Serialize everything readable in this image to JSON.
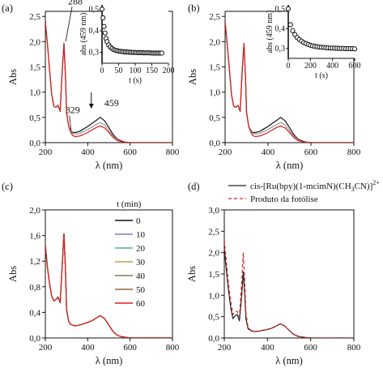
{
  "chart_data": [
    {
      "panel": "(a)",
      "type": "line",
      "xlabel": "λ (nm)",
      "ylabel": "Abs",
      "xlim": [
        200,
        800
      ],
      "ylim": [
        0,
        2.6
      ],
      "xticks": [
        "200",
        "400",
        "600",
        "800"
      ],
      "yticks": [
        "0,0",
        "0,5",
        "1,0",
        "1,5",
        "2,0",
        "2,5"
      ],
      "annotations": [
        "288",
        "329",
        "459"
      ],
      "annotation_x": [
        288,
        329,
        459
      ],
      "arrow_at_x": 459,
      "grid": false,
      "x": [
        200,
        210,
        220,
        230,
        240,
        250,
        260,
        270,
        280,
        288,
        295,
        300,
        310,
        320,
        329,
        340,
        360,
        380,
        400,
        420,
        440,
        459,
        480,
        500,
        520,
        540,
        560,
        580,
        600,
        650,
        700,
        800
      ],
      "series": [
        {
          "name": "",
          "color": "#111111",
          "values": [
            2.4,
            1.95,
            1.45,
            0.95,
            0.72,
            0.7,
            0.74,
            0.62,
            1.45,
            1.97,
            1.3,
            0.6,
            0.33,
            0.24,
            0.2,
            0.2,
            0.22,
            0.27,
            0.32,
            0.38,
            0.44,
            0.5,
            0.43,
            0.3,
            0.16,
            0.07,
            0.03,
            0.01,
            0.0,
            0.0,
            0.0,
            0.0
          ]
        },
        {
          "name": "",
          "color": "#999999",
          "values": [
            2.4,
            1.95,
            1.45,
            0.95,
            0.72,
            0.7,
            0.74,
            0.62,
            1.45,
            1.96,
            1.3,
            0.6,
            0.33,
            0.23,
            0.18,
            0.17,
            0.18,
            0.22,
            0.26,
            0.31,
            0.36,
            0.4,
            0.35,
            0.24,
            0.13,
            0.06,
            0.02,
            0.01,
            0.0,
            0.0,
            0.0,
            0.0
          ]
        },
        {
          "name": "",
          "color": "#dd1c1c",
          "values": [
            2.4,
            1.95,
            1.45,
            0.95,
            0.72,
            0.7,
            0.74,
            0.62,
            1.45,
            1.95,
            1.3,
            0.6,
            0.32,
            0.2,
            0.14,
            0.12,
            0.13,
            0.16,
            0.2,
            0.25,
            0.3,
            0.33,
            0.29,
            0.2,
            0.1,
            0.04,
            0.02,
            0.01,
            0.0,
            0.0,
            0.0,
            0.0
          ]
        }
      ],
      "inset": {
        "type": "scatter",
        "xlabel": "t (s)",
        "ylabel": "abs (459 nm)",
        "xlim": [
          0,
          200
        ],
        "ylim": [
          0.25,
          0.52
        ],
        "xticks": [
          "0",
          "50",
          "100",
          "150",
          "200"
        ],
        "yticks": [
          "0,3",
          "0,4",
          "0,5"
        ],
        "x": [
          0,
          3,
          6,
          9,
          12,
          15,
          20,
          25,
          30,
          35,
          40,
          45,
          50,
          55,
          60,
          65,
          70,
          75,
          80,
          85,
          90,
          95,
          100,
          105,
          110,
          115,
          120,
          125,
          130,
          135,
          140,
          145,
          150,
          155,
          160,
          165,
          170,
          175,
          180
        ],
        "y": [
          0.5,
          0.46,
          0.42,
          0.39,
          0.365,
          0.35,
          0.335,
          0.325,
          0.318,
          0.313,
          0.31,
          0.308,
          0.306,
          0.305,
          0.304,
          0.303,
          0.302,
          0.302,
          0.301,
          0.301,
          0.3,
          0.3,
          0.3,
          0.299,
          0.299,
          0.299,
          0.299,
          0.298,
          0.298,
          0.298,
          0.298,
          0.298,
          0.297,
          0.297,
          0.297,
          0.297,
          0.297,
          0.297,
          0.297
        ]
      }
    },
    {
      "panel": "(b)",
      "type": "line",
      "xlabel": "λ (nm)",
      "ylabel": "Abs",
      "xlim": [
        200,
        800
      ],
      "ylim": [
        0,
        2.6
      ],
      "xticks": [
        "200",
        "400",
        "600",
        "800"
      ],
      "yticks": [
        "0,0",
        "0,5",
        "1,0",
        "1,5",
        "2,0",
        "2,5"
      ],
      "grid": false,
      "x": [
        200,
        210,
        220,
        230,
        240,
        250,
        260,
        270,
        280,
        288,
        295,
        300,
        310,
        320,
        329,
        340,
        360,
        380,
        400,
        420,
        440,
        459,
        480,
        500,
        520,
        540,
        560,
        580,
        600,
        650,
        700,
        800
      ],
      "series": [
        {
          "name": "",
          "color": "#111111",
          "values": [
            2.4,
            1.95,
            1.45,
            0.95,
            0.72,
            0.7,
            0.74,
            0.62,
            1.45,
            1.97,
            1.3,
            0.6,
            0.33,
            0.24,
            0.2,
            0.2,
            0.22,
            0.27,
            0.32,
            0.38,
            0.44,
            0.5,
            0.43,
            0.3,
            0.16,
            0.07,
            0.03,
            0.01,
            0.0,
            0.0,
            0.0,
            0.0
          ]
        },
        {
          "name": "",
          "color": "#999999",
          "values": [
            2.4,
            1.95,
            1.45,
            0.95,
            0.72,
            0.7,
            0.74,
            0.62,
            1.45,
            1.96,
            1.3,
            0.6,
            0.33,
            0.23,
            0.18,
            0.17,
            0.18,
            0.22,
            0.26,
            0.31,
            0.36,
            0.4,
            0.35,
            0.24,
            0.13,
            0.06,
            0.02,
            0.01,
            0.0,
            0.0,
            0.0,
            0.0
          ]
        },
        {
          "name": "",
          "color": "#dd1c1c",
          "values": [
            2.4,
            1.95,
            1.45,
            0.95,
            0.72,
            0.7,
            0.74,
            0.62,
            1.45,
            1.95,
            1.3,
            0.6,
            0.32,
            0.2,
            0.14,
            0.12,
            0.13,
            0.16,
            0.2,
            0.25,
            0.3,
            0.33,
            0.29,
            0.2,
            0.1,
            0.04,
            0.02,
            0.01,
            0.0,
            0.0,
            0.0,
            0.0
          ]
        }
      ],
      "inset": {
        "type": "scatter",
        "xlabel": "t (s)",
        "ylabel": "abs (459 nm)",
        "xlim": [
          0,
          600
        ],
        "ylim": [
          0.25,
          0.52
        ],
        "xticks": [
          "0",
          "200",
          "400",
          "600"
        ],
        "yticks": [
          "0,3",
          "0,4",
          "0,5"
        ],
        "x": [
          0,
          20,
          40,
          60,
          80,
          100,
          120,
          140,
          160,
          180,
          200,
          220,
          240,
          260,
          280,
          300,
          320,
          340,
          360,
          380,
          400,
          420,
          440,
          460,
          480,
          500,
          520,
          540,
          560,
          580,
          600
        ],
        "y": [
          0.5,
          0.42,
          0.39,
          0.37,
          0.355,
          0.345,
          0.337,
          0.33,
          0.325,
          0.32,
          0.316,
          0.313,
          0.311,
          0.309,
          0.307,
          0.306,
          0.305,
          0.304,
          0.303,
          0.302,
          0.302,
          0.301,
          0.301,
          0.3,
          0.3,
          0.3,
          0.299,
          0.299,
          0.299,
          0.299,
          0.298
        ]
      }
    },
    {
      "panel": "(c)",
      "type": "line",
      "xlabel": "λ (nm)",
      "ylabel": "Abs",
      "xlim": [
        200,
        800
      ],
      "ylim": [
        0,
        2.0
      ],
      "xticks": [
        "200",
        "400",
        "600",
        "800"
      ],
      "yticks": [
        "0,0",
        "0,4",
        "0,8",
        "1,2",
        "1,6",
        "2,0"
      ],
      "legend_title": "t (min)",
      "legend_position": "right",
      "grid": false,
      "x": [
        200,
        210,
        220,
        230,
        240,
        250,
        260,
        270,
        280,
        288,
        295,
        300,
        310,
        320,
        330,
        340,
        360,
        380,
        400,
        420,
        440,
        459,
        480,
        500,
        520,
        540,
        560,
        580,
        600,
        650,
        700,
        800
      ],
      "series": [
        {
          "name": "0",
          "color": "#111111",
          "values": [
            1.45,
            1.1,
            0.85,
            0.65,
            0.58,
            0.6,
            0.64,
            0.55,
            1.15,
            1.63,
            1.05,
            0.45,
            0.26,
            0.21,
            0.2,
            0.19,
            0.2,
            0.22,
            0.24,
            0.27,
            0.31,
            0.35,
            0.3,
            0.2,
            0.1,
            0.04,
            0.02,
            0.01,
            0.0,
            0.0,
            0.0,
            0.0
          ]
        },
        {
          "name": "10",
          "color": "#7b7fd1",
          "values": [
            1.45,
            1.1,
            0.85,
            0.65,
            0.58,
            0.6,
            0.64,
            0.55,
            1.15,
            1.63,
            1.05,
            0.45,
            0.26,
            0.21,
            0.2,
            0.19,
            0.2,
            0.22,
            0.24,
            0.27,
            0.31,
            0.35,
            0.3,
            0.2,
            0.1,
            0.04,
            0.02,
            0.01,
            0.0,
            0.0,
            0.0,
            0.0
          ]
        },
        {
          "name": "20",
          "color": "#5aa7a7",
          "values": [
            1.45,
            1.1,
            0.85,
            0.65,
            0.58,
            0.6,
            0.64,
            0.55,
            1.15,
            1.62,
            1.05,
            0.45,
            0.26,
            0.21,
            0.2,
            0.19,
            0.2,
            0.22,
            0.24,
            0.27,
            0.31,
            0.35,
            0.3,
            0.2,
            0.1,
            0.04,
            0.02,
            0.01,
            0.0,
            0.0,
            0.0,
            0.0
          ]
        },
        {
          "name": "30",
          "color": "#b5a357",
          "values": [
            1.45,
            1.1,
            0.85,
            0.65,
            0.58,
            0.6,
            0.64,
            0.55,
            1.15,
            1.62,
            1.05,
            0.45,
            0.26,
            0.21,
            0.2,
            0.19,
            0.2,
            0.22,
            0.24,
            0.27,
            0.31,
            0.35,
            0.3,
            0.2,
            0.1,
            0.04,
            0.02,
            0.01,
            0.0,
            0.0,
            0.0,
            0.0
          ]
        },
        {
          "name": "40",
          "color": "#6a8a4f",
          "values": [
            1.45,
            1.1,
            0.85,
            0.65,
            0.58,
            0.6,
            0.64,
            0.55,
            1.15,
            1.62,
            1.05,
            0.45,
            0.26,
            0.21,
            0.2,
            0.19,
            0.2,
            0.22,
            0.24,
            0.27,
            0.31,
            0.35,
            0.3,
            0.2,
            0.1,
            0.04,
            0.02,
            0.01,
            0.0,
            0.0,
            0.0,
            0.0
          ]
        },
        {
          "name": "50",
          "color": "#8c6a3f",
          "values": [
            1.45,
            1.1,
            0.85,
            0.65,
            0.58,
            0.6,
            0.64,
            0.55,
            1.15,
            1.62,
            1.05,
            0.45,
            0.26,
            0.21,
            0.2,
            0.19,
            0.2,
            0.22,
            0.24,
            0.27,
            0.31,
            0.35,
            0.3,
            0.2,
            0.1,
            0.04,
            0.02,
            0.01,
            0.0,
            0.0,
            0.0,
            0.0
          ]
        },
        {
          "name": "60",
          "color": "#dd1c1c",
          "values": [
            1.45,
            1.1,
            0.85,
            0.65,
            0.58,
            0.6,
            0.64,
            0.55,
            1.15,
            1.62,
            1.05,
            0.45,
            0.26,
            0.21,
            0.2,
            0.19,
            0.2,
            0.22,
            0.24,
            0.27,
            0.31,
            0.35,
            0.3,
            0.2,
            0.1,
            0.04,
            0.02,
            0.01,
            0.0,
            0.0,
            0.0,
            0.0
          ]
        }
      ]
    },
    {
      "panel": "(d)",
      "type": "line",
      "xlabel": "λ (nm)",
      "ylabel": "Abs",
      "xlim": [
        200,
        800
      ],
      "ylim": [
        0,
        3.0
      ],
      "xticks": [
        "200",
        "400",
        "600",
        "800"
      ],
      "yticks": [
        "0,0",
        "0,5",
        "1,0",
        "1,5",
        "2,0",
        "2,5",
        "3,0"
      ],
      "legend_position": "top",
      "grid": false,
      "x": [
        200,
        210,
        220,
        230,
        240,
        250,
        260,
        270,
        280,
        288,
        295,
        300,
        310,
        320,
        330,
        340,
        360,
        380,
        400,
        420,
        440,
        459,
        480,
        500,
        520,
        540,
        560,
        580,
        600,
        650,
        700,
        800
      ],
      "series": [
        {
          "name": "cis-[Ru(bpy)(1-mcimN)(CH3CN)]2+",
          "style": "solid",
          "color": "#222222",
          "values": [
            2.1,
            1.55,
            1.1,
            0.7,
            0.45,
            0.52,
            0.55,
            0.4,
            0.95,
            1.55,
            1.0,
            0.45,
            0.22,
            0.18,
            0.16,
            0.15,
            0.16,
            0.18,
            0.2,
            0.23,
            0.28,
            0.33,
            0.28,
            0.18,
            0.09,
            0.04,
            0.02,
            0.01,
            0.0,
            0.0,
            0.0,
            0.0
          ]
        },
        {
          "name": "Produto da fotólise",
          "style": "dashed",
          "color": "#dd1c1c",
          "values": [
            2.3,
            1.75,
            1.25,
            0.85,
            0.55,
            0.62,
            0.62,
            0.5,
            1.25,
            2.0,
            1.3,
            0.58,
            0.26,
            0.19,
            0.16,
            0.15,
            0.16,
            0.18,
            0.2,
            0.23,
            0.28,
            0.33,
            0.28,
            0.18,
            0.09,
            0.04,
            0.02,
            0.01,
            0.0,
            0.0,
            0.0,
            0.0
          ]
        }
      ]
    }
  ]
}
